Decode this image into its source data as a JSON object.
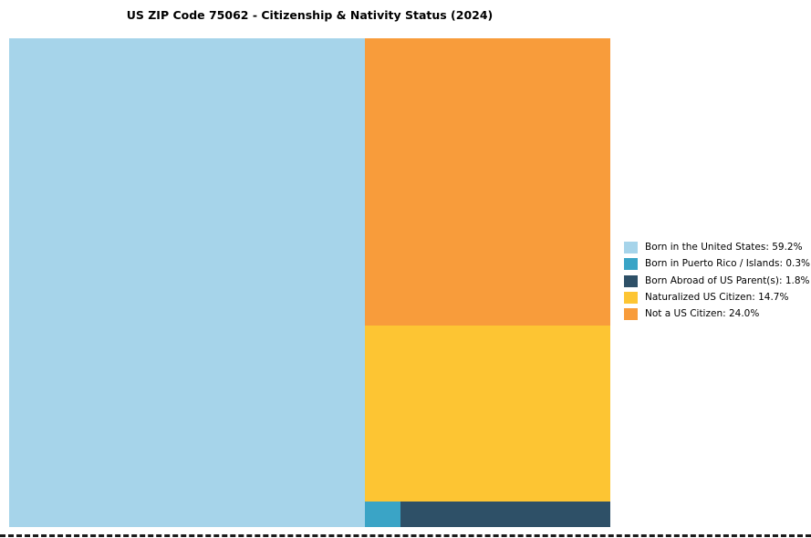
{
  "chart_data": {
    "type": "treemap",
    "title": "US ZIP Code 75062 - Citizenship & Nativity Status (2024)",
    "segments": [
      {
        "label": "Born in the United States",
        "value": 59.2,
        "display": "Born in the United States: 59.2%",
        "color": "#A6D4EA"
      },
      {
        "label": "Born in Puerto Rico / Islands",
        "value": 0.3,
        "display": "Born in Puerto Rico / Islands: 0.3%",
        "color": "#3AA4C6"
      },
      {
        "label": "Born Abroad of US Parent(s)",
        "value": 1.8,
        "display": "Born Abroad of US Parent(s): 1.8%",
        "color": "#2E5067"
      },
      {
        "label": "Naturalized US Citizen",
        "value": 14.7,
        "display": "Naturalized US Citizen: 14.7%",
        "color": "#FDC533"
      },
      {
        "label": "Not a US Citizen",
        "value": 24.0,
        "display": "Not a US Citizen: 24.0%",
        "color": "#F89C3B"
      }
    ],
    "legend_position": "right",
    "legend_order": [
      0,
      1,
      2,
      3,
      4
    ],
    "arrangement": {
      "left_column": 0,
      "right_column_top_to_bottom": [
        4,
        3
      ],
      "bottom_row_left_to_right": [
        1,
        2
      ]
    }
  }
}
